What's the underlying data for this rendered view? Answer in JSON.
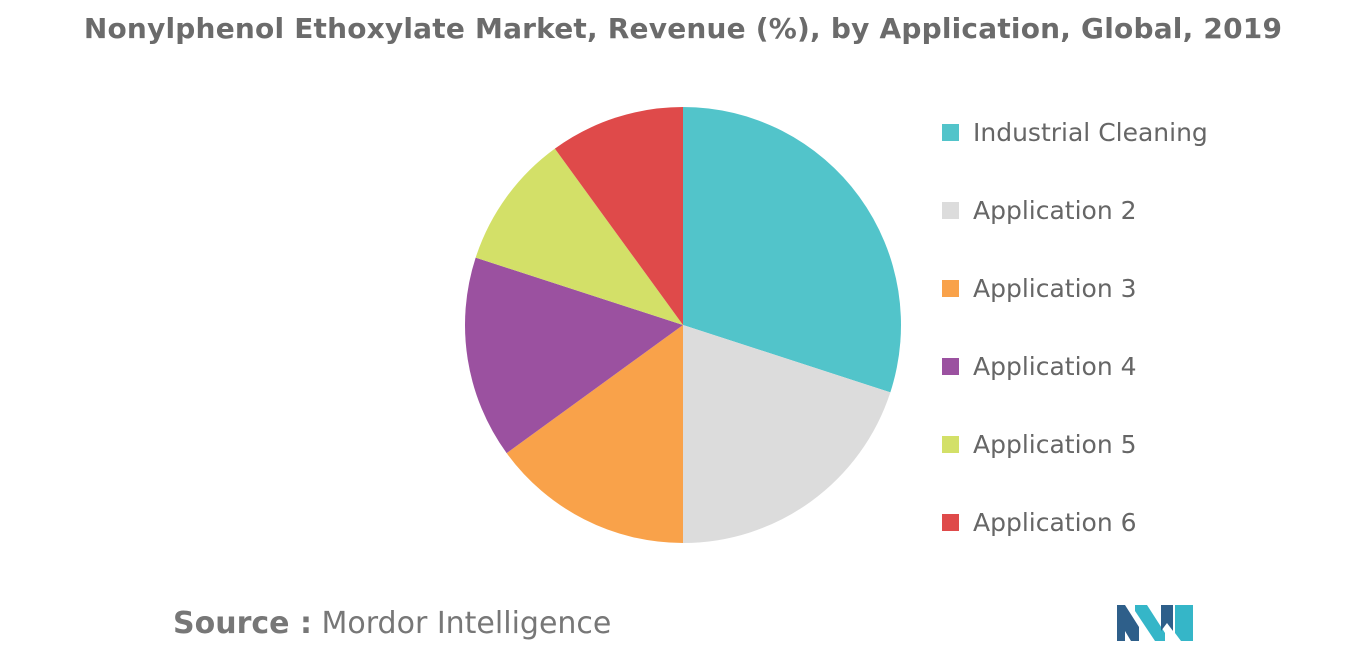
{
  "chart_data": {
    "type": "pie",
    "title": "Nonylphenol Ethoxylate Market, Revenue (%), by Application, Global, 2019",
    "categories": [
      "Industrial Cleaning",
      "Application 2",
      "Application 3",
      "Application 4",
      "Application 5",
      "Application 6"
    ],
    "values": [
      30,
      20,
      15,
      15,
      10,
      10
    ],
    "colors": [
      "#52c4ca",
      "#dcdcdc",
      "#f9a24a",
      "#9b51a0",
      "#d3e068",
      "#df4a4a"
    ],
    "legend_position": "right",
    "start_angle": "12 o'clock",
    "direction": "clockwise"
  },
  "source": {
    "label": "Source :",
    "name": "Mordor Intelligence"
  },
  "logo": {
    "icon": "mordor-intelligence-logo",
    "colors": [
      "#2e5f8a",
      "#35b6c8"
    ]
  }
}
